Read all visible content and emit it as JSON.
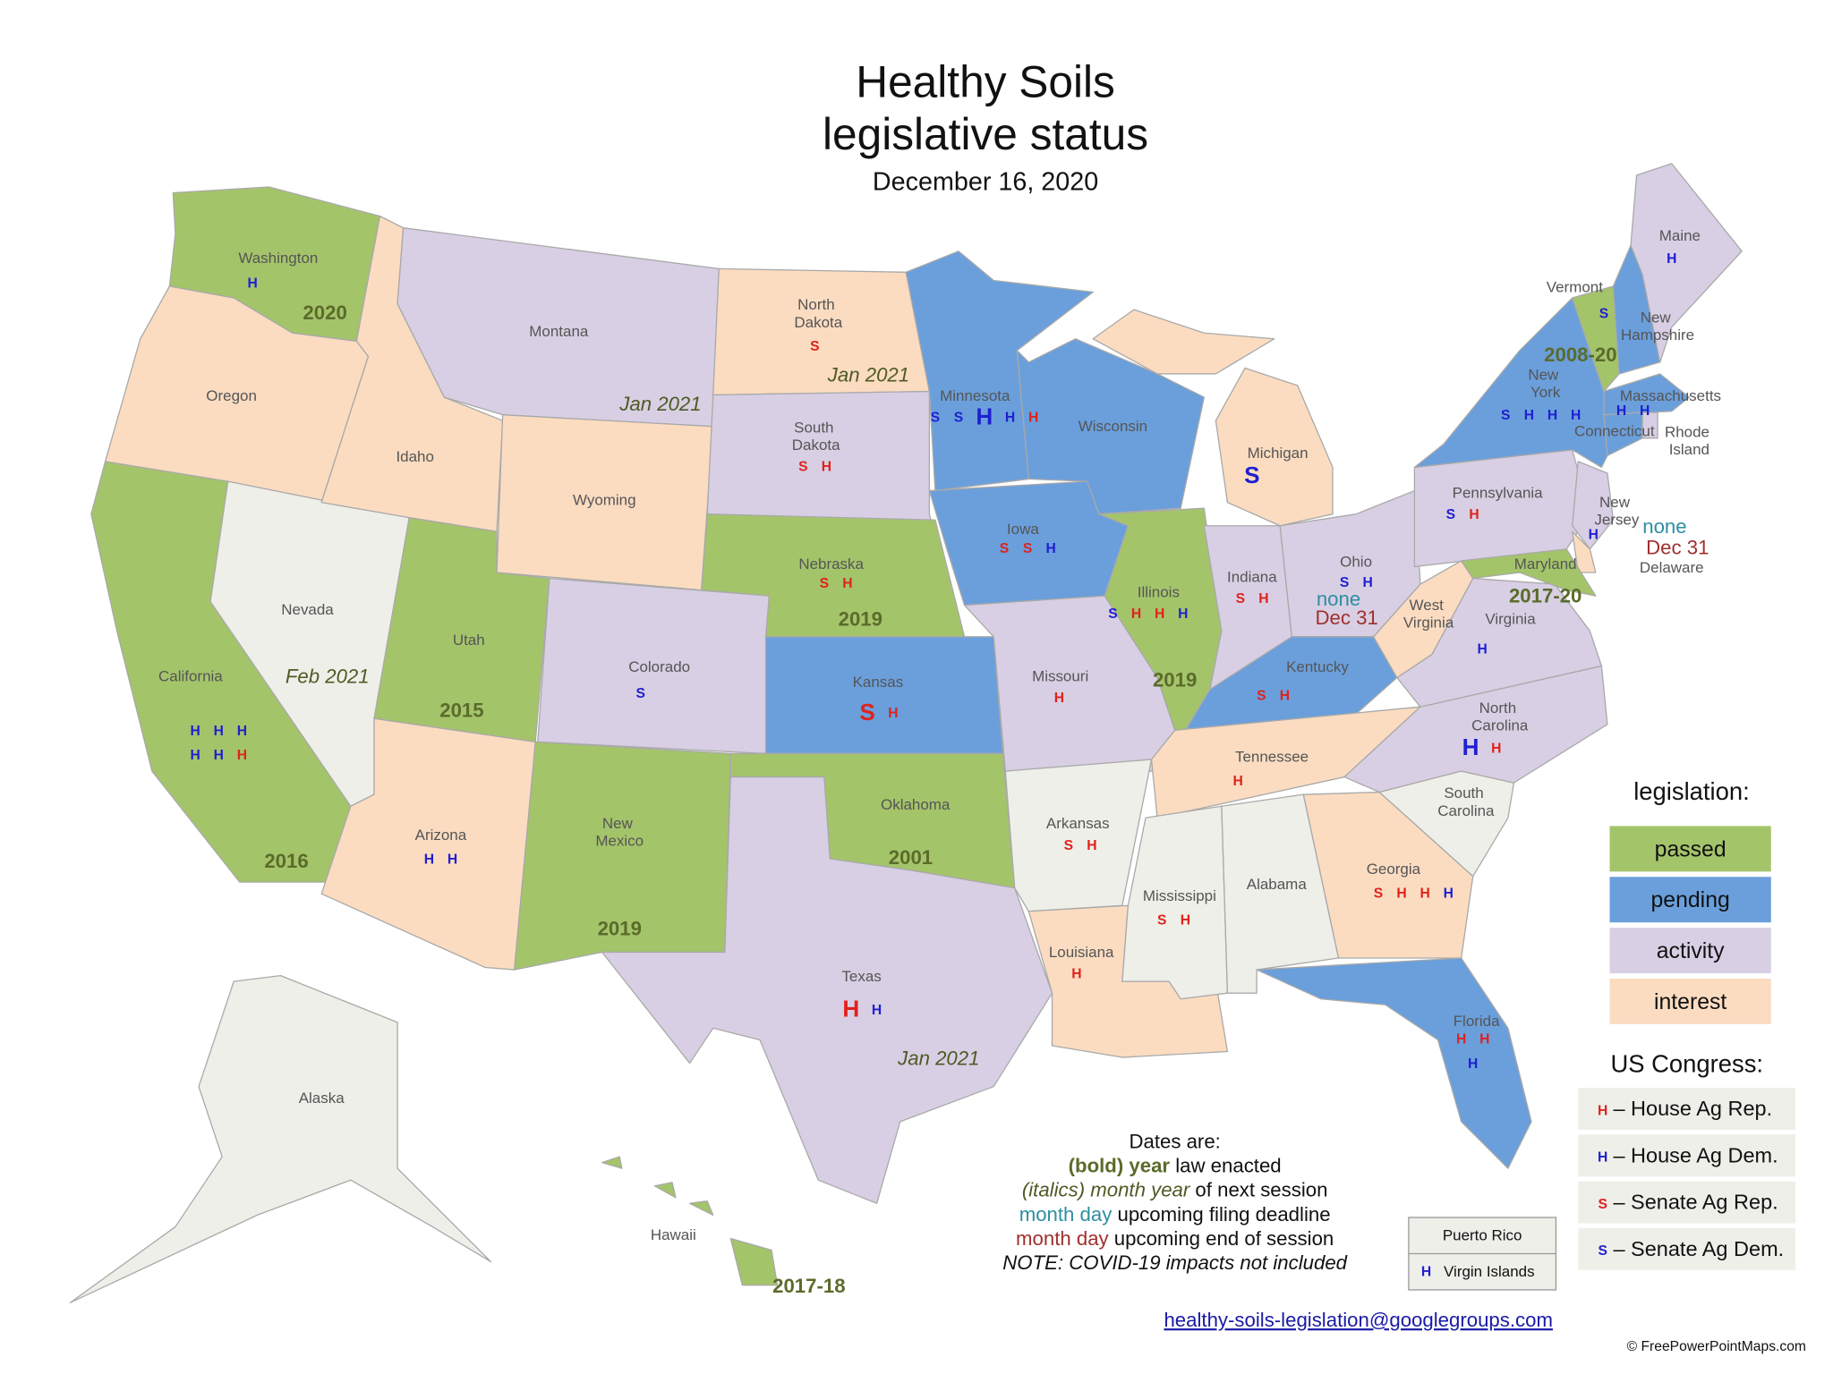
{
  "header": {
    "title": [
      "Healthy Soils",
      "legislative status"
    ],
    "date": "December 16, 2020"
  },
  "party_colors": {
    "dem": "#1f1fd1",
    "rep": "#e0221c"
  },
  "default_fill": "#efefe9",
  "legend": {
    "title": "legislation:",
    "items": [
      {
        "label": "passed",
        "color": "#a4c46a"
      },
      {
        "label": "pending",
        "color": "#6a9fdc"
      },
      {
        "label": "activity",
        "color": "#d8cfe4"
      },
      {
        "label": "interest",
        "color": "#fbdcc1"
      }
    ]
  },
  "congress_legend": {
    "title": "US Congress:",
    "items": [
      {
        "code": "H",
        "party": "rep",
        "label": "– House Ag Rep."
      },
      {
        "code": "H",
        "party": "dem",
        "label": "– House Ag Dem."
      },
      {
        "code": "S",
        "party": "rep",
        "label": "– Senate Ag Rep."
      },
      {
        "code": "S",
        "party": "dem",
        "label": "– Senate Ag Dem."
      }
    ]
  },
  "states": [
    {
      "name": "Washington",
      "status": "passed",
      "codes": [
        {
          "code": "H",
          "party": "dem"
        }
      ],
      "enacted": "2020"
    },
    {
      "name": "Oregon",
      "status": "interest"
    },
    {
      "name": "California",
      "status": "passed",
      "codes": [
        {
          "code": "H",
          "party": "dem"
        },
        {
          "code": "H",
          "party": "dem"
        },
        {
          "code": "H",
          "party": "dem"
        },
        {
          "code": "H",
          "party": "dem"
        },
        {
          "code": "H",
          "party": "dem"
        },
        {
          "code": "H",
          "party": "rep"
        }
      ],
      "enacted": "2016"
    },
    {
      "name": "Nevada",
      "next_session": "Feb 2021"
    },
    {
      "name": "Idaho",
      "status": "interest"
    },
    {
      "name": "Montana",
      "status": "activity",
      "next_session": "Jan 2021"
    },
    {
      "name": "Wyoming",
      "status": "interest"
    },
    {
      "name": "Utah",
      "status": "passed",
      "enacted": "2015"
    },
    {
      "name": "Arizona",
      "status": "interest",
      "codes": [
        {
          "code": "H",
          "party": "dem"
        },
        {
          "code": "H",
          "party": "dem"
        }
      ]
    },
    {
      "name": "Colorado",
      "status": "activity",
      "codes": [
        {
          "code": "S",
          "party": "dem"
        }
      ]
    },
    {
      "name": "New Mexico",
      "status": "passed",
      "enacted": "2019"
    },
    {
      "name": "North Dakota",
      "status": "interest",
      "codes": [
        {
          "code": "S",
          "party": "rep"
        }
      ],
      "next_session": "Jan 2021"
    },
    {
      "name": "South Dakota",
      "status": "activity",
      "codes": [
        {
          "code": "S",
          "party": "rep"
        },
        {
          "code": "H",
          "party": "rep"
        }
      ]
    },
    {
      "name": "Nebraska",
      "status": "passed",
      "codes": [
        {
          "code": "S",
          "party": "rep"
        },
        {
          "code": "H",
          "party": "rep"
        }
      ],
      "enacted": "2019"
    },
    {
      "name": "Kansas",
      "status": "pending",
      "codes": [
        {
          "code": "S",
          "party": "rep",
          "size": "large"
        },
        {
          "code": "H",
          "party": "rep"
        }
      ]
    },
    {
      "name": "Oklahoma",
      "status": "passed",
      "enacted": "2001"
    },
    {
      "name": "Texas",
      "status": "activity",
      "codes": [
        {
          "code": "H",
          "party": "rep",
          "size": "large"
        },
        {
          "code": "H",
          "party": "dem"
        }
      ],
      "next_session": "Jan 2021"
    },
    {
      "name": "Minnesota",
      "status": "pending",
      "codes": [
        {
          "code": "S",
          "party": "dem"
        },
        {
          "code": "S",
          "party": "dem"
        },
        {
          "code": "H",
          "party": "dem",
          "size": "large"
        },
        {
          "code": "H",
          "party": "dem"
        },
        {
          "code": "H",
          "party": "rep"
        }
      ]
    },
    {
      "name": "Iowa",
      "status": "pending",
      "codes": [
        {
          "code": "S",
          "party": "rep"
        },
        {
          "code": "S",
          "party": "rep"
        },
        {
          "code": "H",
          "party": "dem"
        }
      ]
    },
    {
      "name": "Missouri",
      "status": "activity",
      "codes": [
        {
          "code": "H",
          "party": "rep"
        }
      ]
    },
    {
      "name": "Arkansas",
      "codes": [
        {
          "code": "S",
          "party": "rep"
        },
        {
          "code": "H",
          "party": "rep"
        }
      ]
    },
    {
      "name": "Louisiana",
      "status": "interest",
      "codes": [
        {
          "code": "H",
          "party": "rep"
        }
      ]
    },
    {
      "name": "Wisconsin",
      "status": "pending"
    },
    {
      "name": "Illinois",
      "status": "passed",
      "codes": [
        {
          "code": "S",
          "party": "dem"
        },
        {
          "code": "H",
          "party": "rep"
        },
        {
          "code": "H",
          "party": "rep"
        },
        {
          "code": "H",
          "party": "dem"
        }
      ],
      "enacted": "2019"
    },
    {
      "name": "Michigan",
      "status": "interest",
      "codes": [
        {
          "code": "S",
          "party": "dem",
          "size": "large"
        }
      ]
    },
    {
      "name": "Indiana",
      "status": "activity",
      "codes": [
        {
          "code": "S",
          "party": "rep"
        },
        {
          "code": "H",
          "party": "rep"
        }
      ]
    },
    {
      "name": "Ohio",
      "status": "activity",
      "codes": [
        {
          "code": "S",
          "party": "dem"
        },
        {
          "code": "H",
          "party": "dem"
        }
      ],
      "filing_deadline": "none",
      "session_end": "Dec 31"
    },
    {
      "name": "Kentucky",
      "status": "pending",
      "codes": [
        {
          "code": "S",
          "party": "rep"
        },
        {
          "code": "H",
          "party": "rep"
        }
      ]
    },
    {
      "name": "Tennessee",
      "status": "interest",
      "codes": [
        {
          "code": "H",
          "party": "rep"
        }
      ]
    },
    {
      "name": "Mississippi",
      "codes": [
        {
          "code": "S",
          "party": "rep"
        },
        {
          "code": "H",
          "party": "rep"
        }
      ]
    },
    {
      "name": "Alabama"
    },
    {
      "name": "Georgia",
      "status": "interest",
      "codes": [
        {
          "code": "S",
          "party": "rep"
        },
        {
          "code": "H",
          "party": "rep"
        },
        {
          "code": "H",
          "party": "rep"
        },
        {
          "code": "H",
          "party": "dem"
        }
      ]
    },
    {
      "name": "Florida",
      "status": "pending",
      "codes": [
        {
          "code": "H",
          "party": "rep"
        },
        {
          "code": "H",
          "party": "rep"
        },
        {
          "code": "H",
          "party": "dem"
        }
      ]
    },
    {
      "name": "South Carolina"
    },
    {
      "name": "North Carolina",
      "status": "activity",
      "codes": [
        {
          "code": "H",
          "party": "dem",
          "size": "large"
        },
        {
          "code": "H",
          "party": "rep"
        }
      ]
    },
    {
      "name": "Virginia",
      "status": "activity",
      "codes": [
        {
          "code": "H",
          "party": "dem"
        }
      ]
    },
    {
      "name": "West Virginia",
      "status": "interest"
    },
    {
      "name": "Pennsylvania",
      "status": "activity",
      "codes": [
        {
          "code": "S",
          "party": "dem"
        },
        {
          "code": "H",
          "party": "rep"
        }
      ]
    },
    {
      "name": "New York",
      "status": "pending",
      "codes": [
        {
          "code": "S",
          "party": "dem"
        },
        {
          "code": "H",
          "party": "dem"
        },
        {
          "code": "H",
          "party": "dem"
        },
        {
          "code": "H",
          "party": "dem"
        }
      ]
    },
    {
      "name": "Vermont",
      "status": "passed",
      "codes": [
        {
          "code": "S",
          "party": "dem"
        }
      ],
      "enacted": "2008-20"
    },
    {
      "name": "New Hampshire",
      "status": "pending"
    },
    {
      "name": "Maine",
      "status": "activity",
      "codes": [
        {
          "code": "H",
          "party": "dem"
        }
      ]
    },
    {
      "name": "Massachusetts",
      "status": "pending",
      "codes": [
        {
          "code": "H",
          "party": "dem"
        },
        {
          "code": "H",
          "party": "dem"
        }
      ]
    },
    {
      "name": "Connecticut",
      "status": "pending"
    },
    {
      "name": "Rhode Island",
      "status": "activity"
    },
    {
      "name": "New Jersey",
      "status": "activity",
      "codes": [
        {
          "code": "H",
          "party": "dem"
        }
      ],
      "filing_deadline": "none",
      "session_end": "Dec 31"
    },
    {
      "name": "Delaware",
      "status": "interest"
    },
    {
      "name": "Maryland",
      "status": "passed",
      "enacted": "2017-20"
    },
    {
      "name": "Alaska"
    },
    {
      "name": "Hawaii",
      "status": "passed",
      "enacted": "2017-18"
    }
  ],
  "notes": [
    [
      {
        "text": "Dates are:"
      }
    ],
    [
      {
        "text": "(bold) year",
        "style": "bold"
      },
      {
        "text": " law enacted"
      }
    ],
    [
      {
        "text": "(italics) month year",
        "style": "italic"
      },
      {
        "text": " of next session"
      }
    ],
    [
      {
        "text": "month day",
        "style": "deadline"
      },
      {
        "text": " upcoming filing deadline"
      }
    ],
    [
      {
        "text": "month day",
        "style": "end"
      },
      {
        "text": " upcoming end of session"
      }
    ],
    [
      {
        "text": "NOTE: COVID-19 impacts not included",
        "style": "note"
      }
    ]
  ],
  "territories": [
    {
      "name": "Puerto Rico"
    },
    {
      "name": "Virgin Islands",
      "codes": [
        {
          "code": "H",
          "party": "dem"
        }
      ]
    }
  ],
  "email": "healthy-soils-legislation@googlegroups.com",
  "credit": "© FreePowerPointMaps.com"
}
